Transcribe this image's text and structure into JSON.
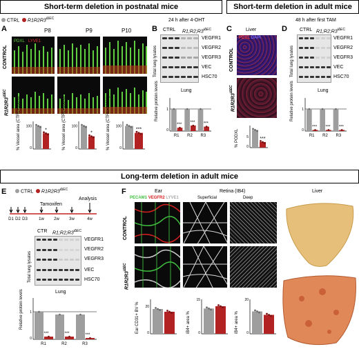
{
  "banners": {
    "top_left": "Short-term deletion in postnatal mice",
    "top_right": "Short-term deletion in adult mice",
    "bottom": "Long-term deletion in adult mice"
  },
  "legend": {
    "ctrl": "CTRL",
    "mut": "R1R2R3",
    "mut_sup": "iΔEC"
  },
  "colors": {
    "ctrl": "#9e9e9e",
    "mut": "#b22222",
    "pecam": "#3fbf3f",
    "vegfr2": "#d62020",
    "lyve": "#e0e0e0"
  },
  "panelA": {
    "letter": "A",
    "cols": [
      "P8",
      "P9",
      "P10"
    ],
    "stain_pdxl": "PDXL",
    "stain_lyve": "LYVE1",
    "row_ctrl": "CONTROL",
    "row_mut": "R1R2R3",
    "row_mut_sup": "iΔEC",
    "yaxis": "% Vessel area (CTRL=100%)",
    "ytick": "100",
    "ytick0": "0",
    "sig": [
      "*",
      "*",
      "***"
    ]
  },
  "panelB": {
    "letter": "B",
    "title": "24 h after 4-OHT",
    "col_ctrl": "CTRL",
    "col_mut": "R1;R2;R3",
    "col_mut_sup": "iΔEC",
    "side": "Total lung lysates",
    "bands": [
      "VEGFR1",
      "VEGFR2",
      "VEGFR3",
      "VEC",
      "HSC70"
    ],
    "chart_title": "Lung",
    "yaxis": "Relative protein levels",
    "ytick1": "1",
    "ytick0": "0",
    "groups": [
      "R1",
      "R2",
      "R3"
    ],
    "sig": [
      "***",
      "***",
      "***"
    ]
  },
  "panelC": {
    "letter": "C",
    "title": "Liver",
    "stain_pdxl": "PDXL",
    "stain_dapi": "DAPI",
    "row_ctrl": "CONTROL",
    "row_mut": "R1R2R3",
    "row_mut_sup": "iΔEC",
    "yaxis": "% PODXL",
    "ytick": "5",
    "ytick0": "0",
    "sig": "***"
  },
  "panelD": {
    "letter": "D",
    "title": "48 h after first TAM",
    "col_ctrl": "CTRL",
    "col_mut": "R1;R2;R3",
    "col_mut_sup": "iΔEC",
    "side": "Total lung lysates",
    "bands": [
      "VEGFR1",
      "VEGFR2",
      "VEGFR3",
      "VEC",
      "HSC70"
    ],
    "chart_title": "Lung",
    "yaxis": "Relative protein levels",
    "ytick1": "1",
    "ytick0": "0",
    "groups": [
      "R1",
      "R2",
      "R3"
    ],
    "sig": [
      "***",
      "***",
      "***"
    ]
  },
  "panelE": {
    "letter": "E",
    "legend_ctrl": "CTRL",
    "legend_mut": "R1R2R3",
    "legend_mut_sup": "iΔEC",
    "tamoxifen": "Tamoxifen",
    "analysis": "Analysis",
    "timeline": [
      "D1",
      "D2",
      "D3",
      "1w",
      "2w",
      "3w",
      "4w"
    ],
    "col_ctrl": "CTR",
    "col_mut": "R1;R2;R3",
    "col_mut_sup": "iΔEC",
    "side": "Total lung lysates",
    "bands": [
      "VEGFR1",
      "VEGFR2",
      "VEGFR3",
      "VEC",
      "HSC70"
    ],
    "chart_title": "Lung",
    "yaxis": "Relative protein levels",
    "ytick1": "1",
    "ytick0": "0",
    "groups": [
      "R1",
      "R2",
      "R3"
    ],
    "sig": [
      "***",
      "***",
      "***"
    ]
  },
  "panelF": {
    "letter": "F",
    "ear": "Ear",
    "retina": "Retina (IB4)",
    "liver": "Liver",
    "superficial": "Superficial",
    "deep": "Deep",
    "stain_pecam": "PECAM1",
    "stain_vegfr2": "VEGFR2",
    "stain_lyve": "LYVE1",
    "row_ctrl": "CONTROL",
    "row_mut": "R1R2R3",
    "row_mut_sup": "iΔEC",
    "chart1_y": "Ear CD31+ BV %",
    "chart1_ticks": [
      "0",
      "10",
      "20"
    ],
    "chart2_y": "iB4+ area %",
    "chart2_ticks": [
      "0",
      "10",
      "15"
    ],
    "chart3_y": "iB4+ area %",
    "chart3_ticks": [
      "0",
      "10",
      "20"
    ]
  },
  "chart_data": [
    {
      "type": "bar",
      "panel": "A-P8",
      "categories": [
        "CTRL",
        "R1R2R3"
      ],
      "values": [
        100,
        68
      ],
      "ylim": [
        0,
        120
      ]
    },
    {
      "type": "bar",
      "panel": "A-P9",
      "categories": [
        "CTRL",
        "R1R2R3"
      ],
      "values": [
        100,
        55
      ],
      "ylim": [
        0,
        120
      ]
    },
    {
      "type": "bar",
      "panel": "A-P10",
      "categories": [
        "CTRL",
        "R1R2R3"
      ],
      "values": [
        100,
        70
      ],
      "ylim": [
        0,
        120
      ]
    },
    {
      "type": "bar",
      "panel": "B",
      "categories": [
        "R1",
        "R2",
        "R3"
      ],
      "series": [
        {
          "values": [
            1.0,
            1.0,
            1.0
          ]
        },
        {
          "values": [
            0.15,
            0.25,
            0.2
          ]
        }
      ],
      "ylim": [
        0,
        1.5
      ]
    },
    {
      "type": "bar",
      "panel": "C",
      "categories": [
        "CTRL",
        "R1R2R3"
      ],
      "values": [
        8,
        2.5
      ],
      "ylim": [
        0,
        10
      ]
    },
    {
      "type": "bar",
      "panel": "D",
      "categories": [
        "R1",
        "R2",
        "R3"
      ],
      "series": [
        {
          "values": [
            1.0,
            1.0,
            1.0
          ]
        },
        {
          "values": [
            0.05,
            0.05,
            0.05
          ]
        }
      ],
      "ylim": [
        0,
        1.5
      ]
    },
    {
      "type": "bar",
      "panel": "E",
      "categories": [
        "R1",
        "R2",
        "R3"
      ],
      "series": [
        {
          "values": [
            1.0,
            0.9,
            0.9
          ]
        },
        {
          "values": [
            0.1,
            0.1,
            0.05
          ]
        }
      ],
      "ylim": [
        0,
        1.5
      ]
    },
    {
      "type": "bar",
      "panel": "F-ear",
      "categories": [
        "CTRL",
        "R1R2R3"
      ],
      "values": [
        18,
        16
      ],
      "ylim": [
        0,
        25
      ]
    },
    {
      "type": "bar",
      "panel": "F-sup",
      "categories": [
        "CTRL",
        "R1R2R3"
      ],
      "values": [
        11,
        12
      ],
      "ylim": [
        0,
        15
      ]
    },
    {
      "type": "bar",
      "panel": "F-deep",
      "categories": [
        "CTRL",
        "R1R2R3"
      ],
      "values": [
        13,
        11
      ],
      "ylim": [
        0,
        20
      ]
    }
  ]
}
